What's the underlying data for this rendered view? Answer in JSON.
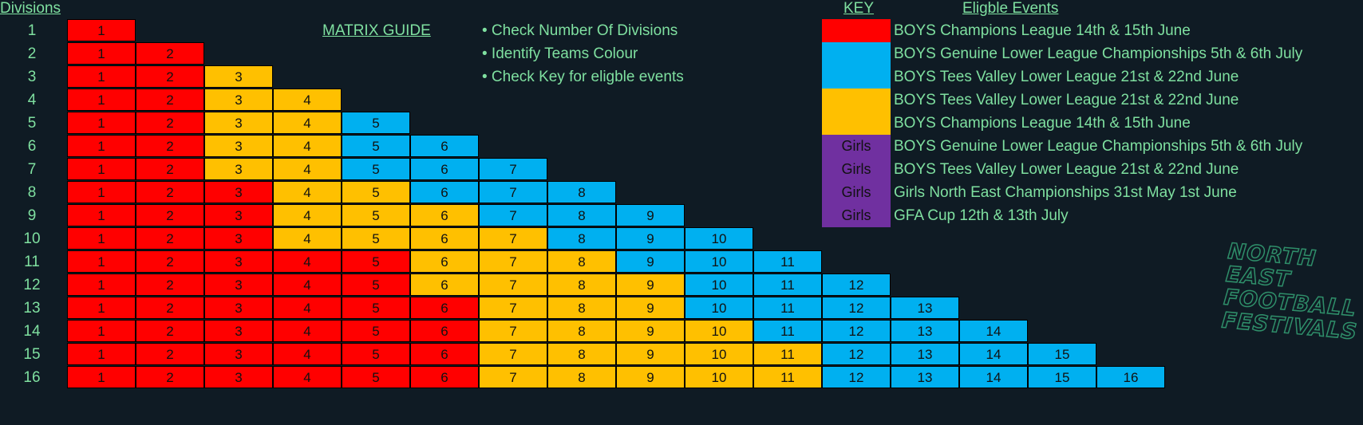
{
  "header": {
    "divisions_label": "Divisions"
  },
  "guide": {
    "title": "MATRIX GUIDE",
    "bullets": [
      "• Check Number Of Divisions",
      "• Identify Teams Colour",
      "• Check Key for eligble events"
    ]
  },
  "key": {
    "title": "KEY",
    "events_title": "Eligble Events",
    "items": [
      {
        "color": "#ff0000",
        "swatch": "",
        "text": "BOYS Champions League 14th & 15th June"
      },
      {
        "color": "#00b0f0",
        "swatch": "",
        "text": "BOYS Genuine Lower League Championships 5th & 6th July"
      },
      {
        "color": "#00b0f0",
        "swatch": "",
        "text": "BOYS Tees Valley Lower League 21st & 22nd June"
      },
      {
        "color": "#ffc000",
        "swatch": "",
        "text": "BOYS Tees Valley Lower League 21st & 22nd June"
      },
      {
        "color": "#ffc000",
        "swatch": "",
        "text": "BOYS Champions League 14th & 15th June"
      },
      {
        "color": "#7030a0",
        "swatch": "Girls",
        "text": "BOYS Genuine Lower League Championships 5th & 6th July"
      },
      {
        "color": "#7030a0",
        "swatch": "Girls",
        "text": "BOYS Tees Valley Lower League 21st & 22nd June"
      },
      {
        "color": "#7030a0",
        "swatch": "Girls",
        "text": "Girls North East Championships 31st May 1st June"
      },
      {
        "color": "#7030a0",
        "swatch": "Girls",
        "text": "GFA Cup 12th & 13th July"
      }
    ]
  },
  "colors": {
    "R": "#ff0000",
    "B": "#00b0f0",
    "Y": "#ffc000"
  },
  "matrix": {
    "rows": [
      {
        "label": "1",
        "cells": "R"
      },
      {
        "label": "2",
        "cells": "RR"
      },
      {
        "label": "3",
        "cells": "RRY"
      },
      {
        "label": "4",
        "cells": "RRYY"
      },
      {
        "label": "5",
        "cells": "RRYYB"
      },
      {
        "label": "6",
        "cells": "RRYYBB"
      },
      {
        "label": "7",
        "cells": "RRYYBBB"
      },
      {
        "label": "8",
        "cells": "RRRYYBBB"
      },
      {
        "label": "9",
        "cells": "RRRYYYBBB"
      },
      {
        "label": "10",
        "cells": "RRRYYYYBBB"
      },
      {
        "label": "11",
        "cells": "RRRRRYYYBBB"
      },
      {
        "label": "12",
        "cells": "RRRRRYYYYBBB"
      },
      {
        "label": "13",
        "cells": "RRRRRRYYYBBBB"
      },
      {
        "label": "14",
        "cells": "RRRRRRYYYYBBBB"
      },
      {
        "label": "15",
        "cells": "RRRRRRYYYYYBBBB"
      },
      {
        "label": "16",
        "cells": "RRRRRRYYYYYBBBBB"
      }
    ]
  },
  "logo": {
    "lines": [
      "NORTH",
      "EAST",
      "FOOTBALL",
      "FESTIVALS"
    ]
  }
}
